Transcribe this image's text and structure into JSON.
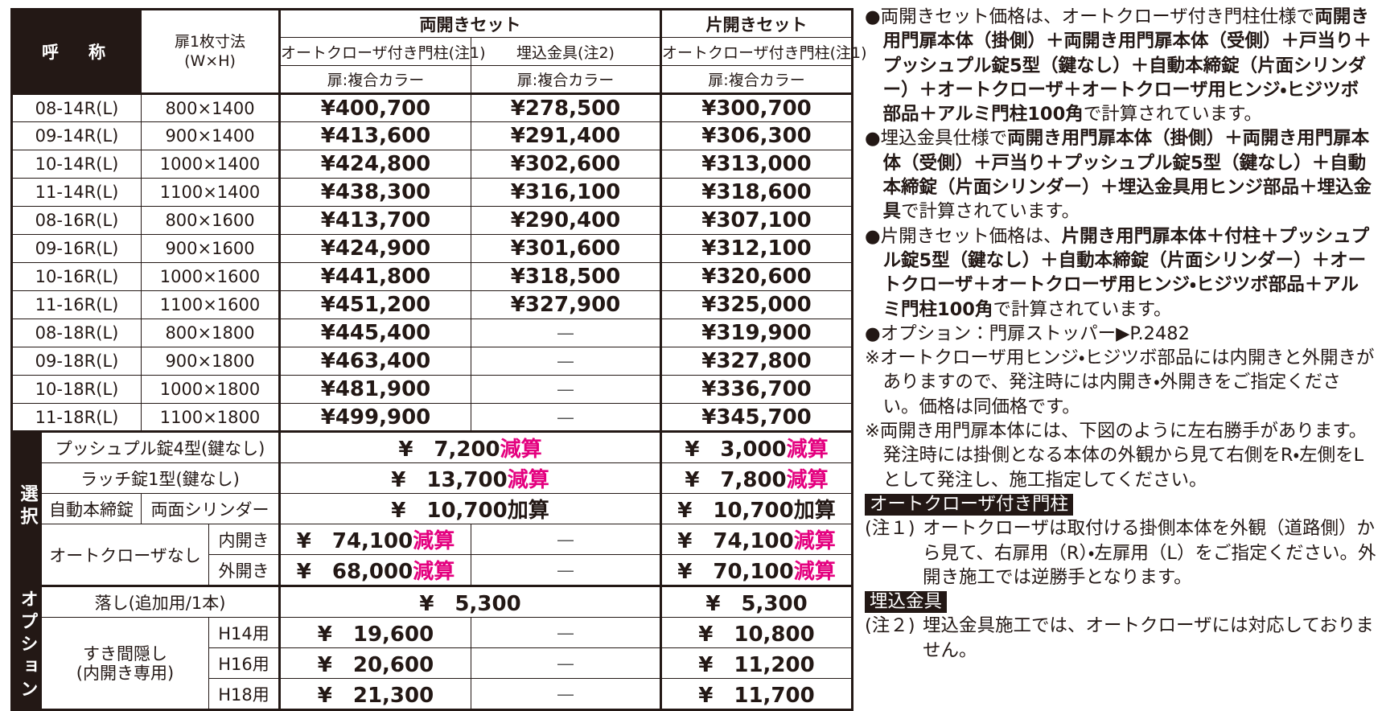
{
  "table": {
    "header": {
      "name": "呼　称",
      "size_1": "扉1枚寸法",
      "size_2": "(W×H)",
      "double_set": "両開きセット",
      "single_set": "片開きセット",
      "columns": [
        "オートクローザ付き門柱(注1)",
        "埋込金具(注2)",
        "オートクローザ付き門柱(注1)"
      ],
      "colors": [
        "扉:複合カラー",
        "扉:複合カラー",
        "扉:複合カラー"
      ]
    },
    "rows": [
      [
        "08-14R(L)",
        "800×1400",
        "¥400,700",
        "¥278,500",
        "¥300,700"
      ],
      [
        "09-14R(L)",
        "900×1400",
        "¥413,600",
        "¥291,400",
        "¥306,300"
      ],
      [
        "10-14R(L)",
        "1000×1400",
        "¥424,800",
        "¥302,600",
        "¥313,000"
      ],
      [
        "11-14R(L)",
        "1100×1400",
        "¥438,300",
        "¥316,100",
        "¥318,600"
      ],
      [
        "08-16R(L)",
        "800×1600",
        "¥413,700",
        "¥290,400",
        "¥307,100"
      ],
      [
        "09-16R(L)",
        "900×1600",
        "¥424,900",
        "¥301,600",
        "¥312,100"
      ],
      [
        "10-16R(L)",
        "1000×1600",
        "¥441,800",
        "¥318,500",
        "¥320,600"
      ],
      [
        "11-16R(L)",
        "1100×1600",
        "¥451,200",
        "¥327,900",
        "¥325,000"
      ],
      [
        "08-18R(L)",
        "800×1800",
        "¥445,400",
        "―",
        "¥319,900"
      ],
      [
        "09-18R(L)",
        "900×1800",
        "¥463,400",
        "―",
        "¥327,800"
      ],
      [
        "10-18R(L)",
        "1000×1800",
        "¥481,900",
        "―",
        "¥336,700"
      ],
      [
        "11-18R(L)",
        "1100×1800",
        "¥499,900",
        "―",
        "¥345,700"
      ]
    ],
    "select": {
      "label": "選択",
      "rows": [
        {
          "item": "プッシュプル錠4型(鍵なし)",
          "double": "¥　7,200",
          "double_note": "減算",
          "single": "¥　3,000",
          "single_note": "減算"
        },
        {
          "item": "ラッチ錠1型(鍵なし)",
          "double": "¥　13,700",
          "double_note": "減算",
          "single": "¥　7,800",
          "single_note": "減算"
        },
        {
          "item": "自動本締錠",
          "sub": "両面シリンダー",
          "double": "¥　10,700",
          "double_note": "加算",
          "single": "¥　10,700",
          "single_note": "加算"
        }
      ],
      "closer": {
        "item": "オートクローザなし",
        "rows": [
          {
            "sub": "内開き",
            "auto": "¥　74,100",
            "auto_note": "減算",
            "embed": "―",
            "single": "¥　74,100",
            "single_note": "減算"
          },
          {
            "sub": "外開き",
            "auto": "¥　68,000",
            "auto_note": "減算",
            "embed": "―",
            "single": "¥　70,100",
            "single_note": "減算"
          }
        ]
      }
    },
    "options": {
      "label": "オプション",
      "drop": {
        "item": "落し(追加用/1本)",
        "double": "¥　5,300",
        "single": "¥　5,300"
      },
      "gap": {
        "item_1": "すき間隠し",
        "item_2": "(内開き専用)",
        "rows": [
          {
            "sub": "H14用",
            "auto": "¥　19,600",
            "embed": "―",
            "single": "¥　10,800"
          },
          {
            "sub": "H16用",
            "auto": "¥　20,600",
            "embed": "―",
            "single": "¥　11,200"
          },
          {
            "sub": "H18用",
            "auto": "¥　21,300",
            "embed": "―",
            "single": "¥　11,700"
          }
        ]
      }
    }
  },
  "notes": {
    "items": [
      [
        {
          "text": "●両開きセット価格は、オートクローザ付き門柱仕様で",
          "bold": false
        },
        {
          "text": "両開き用門扉本体（掛側）＋両開き用門扉本体（受側）＋戸当り＋プッシュプル錠5型（鍵なし）＋自動本締錠（片面シリンダー）＋オートクローザ＋オートクローザ用ヒンジ・ヒジツボ部品＋アルミ門柱100角",
          "bold": true
        },
        {
          "text": "で計算されています。",
          "bold": false
        }
      ],
      [
        {
          "text": "●埋込金具仕様で",
          "bold": false
        },
        {
          "text": "両開き用門扉本体（掛側）＋両開き用門扉本体（受側）＋戸当り＋プッシュプル錠5型（鍵なし）＋自動本締錠（片面シリンダー）＋埋込金具用ヒンジ部品＋埋込金具",
          "bold": true
        },
        {
          "text": "で計算されています。",
          "bold": false
        }
      ],
      [
        {
          "text": "●片開きセット価格は、",
          "bold": false
        },
        {
          "text": "片開き用門扉本体＋付柱＋プッシュプル錠5型（鍵なし）＋自動本締錠（片面シリンダー）＋オートクローザ＋オートクローザ用ヒンジ・ヒジツボ部品＋アルミ門柱100角",
          "bold": true
        },
        {
          "text": "で計算されています。",
          "bold": false
        }
      ],
      [
        {
          "text": "●オプション：門扉ストッパー▶P.2482",
          "bold": false
        }
      ],
      [
        {
          "text": "※オートクローザ用ヒンジ・ヒジツボ部品には内開きと外開きがありますので、発注時には内開き・外開きをご指定ください。価格は同価格です。",
          "bold": false
        }
      ],
      [
        {
          "text": "※両開き用門扉本体には、下図のように左右勝手があります。発注時には掛側となる本体の外観から見て右側をR・左側をLとして発注し、施工指定してください。",
          "bold": false
        }
      ]
    ],
    "sections": [
      {
        "heading": "オートクローザ付き門柱",
        "label": "(注１)",
        "text": "オートクローザは取付ける掛側本体を外観（道路側）から見て、右扉用（R）・左扉用（L）をご指定ください。外開き施工では逆勝手となります。"
      },
      {
        "heading": "埋込金具",
        "label": "(注２)",
        "text": "埋込金具施工では、オートクローザには対応しておりません。"
      }
    ]
  }
}
